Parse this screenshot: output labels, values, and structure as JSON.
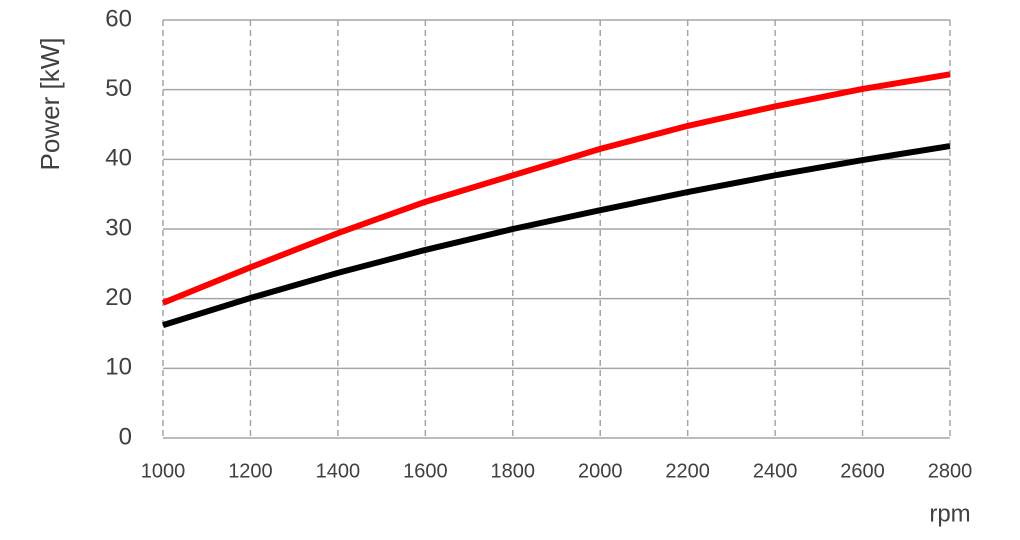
{
  "chart_data": {
    "type": "line",
    "y_label": "Power [kW]",
    "x_label": "rpm",
    "x": [
      1000,
      1200,
      1400,
      1600,
      1800,
      2000,
      2200,
      2400,
      2600,
      2800
    ],
    "series": [
      {
        "color": "#ff0000",
        "values": [
          19.4,
          24.5,
          29.4,
          33.9,
          37.7,
          41.5,
          44.8,
          47.6,
          50.1,
          52.2
        ]
      },
      {
        "color": "#000000",
        "values": [
          16.2,
          20.1,
          23.7,
          27.0,
          30.0,
          32.7,
          35.3,
          37.7,
          39.9,
          41.9
        ]
      }
    ],
    "xlim": [
      1000,
      2800
    ],
    "xticks": [
      1000,
      1200,
      1400,
      1600,
      1800,
      2000,
      2200,
      2400,
      2600,
      2800
    ],
    "ylim": [
      0,
      60
    ],
    "yticks": [
      0,
      10,
      20,
      30,
      40,
      50,
      60
    ],
    "grid": true
  }
}
